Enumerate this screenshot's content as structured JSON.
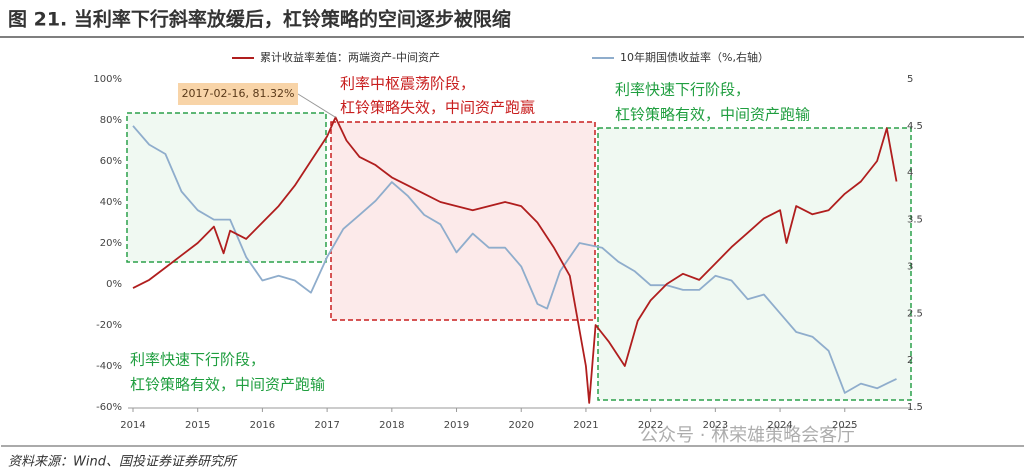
{
  "chart_data": {
    "type": "line",
    "title": "图 21. 当利率下行斜率放缓后，杠铃策略的空间逐步被限缩",
    "source": "资料来源：Wind、国投证券证券研究所",
    "watermark": "公众号 · 林荣雄策略会客厅",
    "xlim": [
      2014,
      2025.9
    ],
    "xticks": [
      2014,
      2015,
      2016,
      2017,
      2018,
      2019,
      2020,
      2021,
      2022,
      2023,
      2024,
      2025
    ],
    "ylim": [
      -60,
      100
    ],
    "yticks": [
      {
        "value": -60,
        "label": "-60%"
      },
      {
        "value": -40,
        "label": "-40%"
      },
      {
        "value": -20,
        "label": "-20%"
      },
      {
        "value": 0,
        "label": "0%"
      },
      {
        "value": 20,
        "label": "20%"
      },
      {
        "value": 40,
        "label": "40%"
      },
      {
        "value": 60,
        "label": "60%"
      },
      {
        "value": 80,
        "label": "80%"
      },
      {
        "value": 100,
        "label": "100%"
      }
    ],
    "y2lim": [
      1.5,
      5
    ],
    "y2ticks": [
      1.5,
      2,
      2.5,
      3,
      3.5,
      4,
      4.5,
      5
    ],
    "grid": false,
    "legend": "top",
    "series": [
      {
        "name": "累计收益率差值：两端资产-中间资产",
        "color": "#b01e1e",
        "x": [
          2014.0,
          2014.25,
          2014.5,
          2014.75,
          2015.0,
          2015.25,
          2015.4,
          2015.5,
          2015.75,
          2016.0,
          2016.25,
          2016.5,
          2016.75,
          2017.0,
          2017.13,
          2017.3,
          2017.5,
          2017.75,
          2018.0,
          2018.25,
          2018.5,
          2018.75,
          2019.0,
          2019.25,
          2019.5,
          2019.75,
          2020.0,
          2020.25,
          2020.5,
          2020.75,
          2021.0,
          2021.05,
          2021.15,
          2021.35,
          2021.6,
          2021.8,
          2022.0,
          2022.25,
          2022.5,
          2022.75,
          2023.0,
          2023.25,
          2023.5,
          2023.75,
          2024.0,
          2024.1,
          2024.25,
          2024.5,
          2024.75,
          2025.0,
          2025.25,
          2025.5,
          2025.65,
          2025.8
        ],
        "values": [
          -2,
          2,
          8,
          14,
          20,
          28,
          15,
          26,
          22,
          30,
          38,
          48,
          60,
          72,
          81.32,
          70,
          62,
          58,
          52,
          48,
          44,
          40,
          38,
          36,
          38,
          40,
          38,
          30,
          18,
          4,
          -40,
          -58,
          -20,
          -28,
          -40,
          -18,
          -8,
          0,
          5,
          2,
          10,
          18,
          25,
          32,
          36,
          20,
          38,
          34,
          36,
          44,
          50,
          60,
          76,
          50
        ]
      },
      {
        "name": "10年期国债收益率（%,右轴）",
        "color": "#8fadcc",
        "axis": "y2",
        "x": [
          2014.0,
          2014.25,
          2014.5,
          2014.75,
          2015.0,
          2015.25,
          2015.5,
          2015.75,
          2016.0,
          2016.25,
          2016.5,
          2016.75,
          2017.0,
          2017.25,
          2017.5,
          2017.75,
          2018.0,
          2018.25,
          2018.5,
          2018.75,
          2019.0,
          2019.25,
          2019.5,
          2019.75,
          2020.0,
          2020.25,
          2020.4,
          2020.6,
          2020.9,
          2021.25,
          2021.5,
          2021.75,
          2022.0,
          2022.25,
          2022.5,
          2022.75,
          2023.0,
          2023.25,
          2023.5,
          2023.75,
          2024.0,
          2024.25,
          2024.5,
          2024.75,
          2025.0,
          2025.25,
          2025.5,
          2025.8
        ],
        "values": [
          4.5,
          4.3,
          4.2,
          3.8,
          3.6,
          3.5,
          3.5,
          3.1,
          2.85,
          2.9,
          2.85,
          2.72,
          3.1,
          3.4,
          3.55,
          3.7,
          3.9,
          3.75,
          3.55,
          3.45,
          3.15,
          3.35,
          3.2,
          3.2,
          3.0,
          2.6,
          2.55,
          2.95,
          3.25,
          3.2,
          3.05,
          2.95,
          2.8,
          2.8,
          2.75,
          2.75,
          2.9,
          2.85,
          2.65,
          2.7,
          2.5,
          2.3,
          2.25,
          2.1,
          1.65,
          1.75,
          1.7,
          1.8
        ]
      }
    ],
    "callout": "2017-02-16, 81.32%",
    "annotations": [
      "利率中枢震荡阶段，",
      "杠铃策略失效，中间资产跑赢",
      "利率快速下行阶段，",
      "杠铃策略有效，中间资产跑输",
      "利率快速下行阶段，",
      "杠铃策略有效，中间资产跑输"
    ]
  }
}
